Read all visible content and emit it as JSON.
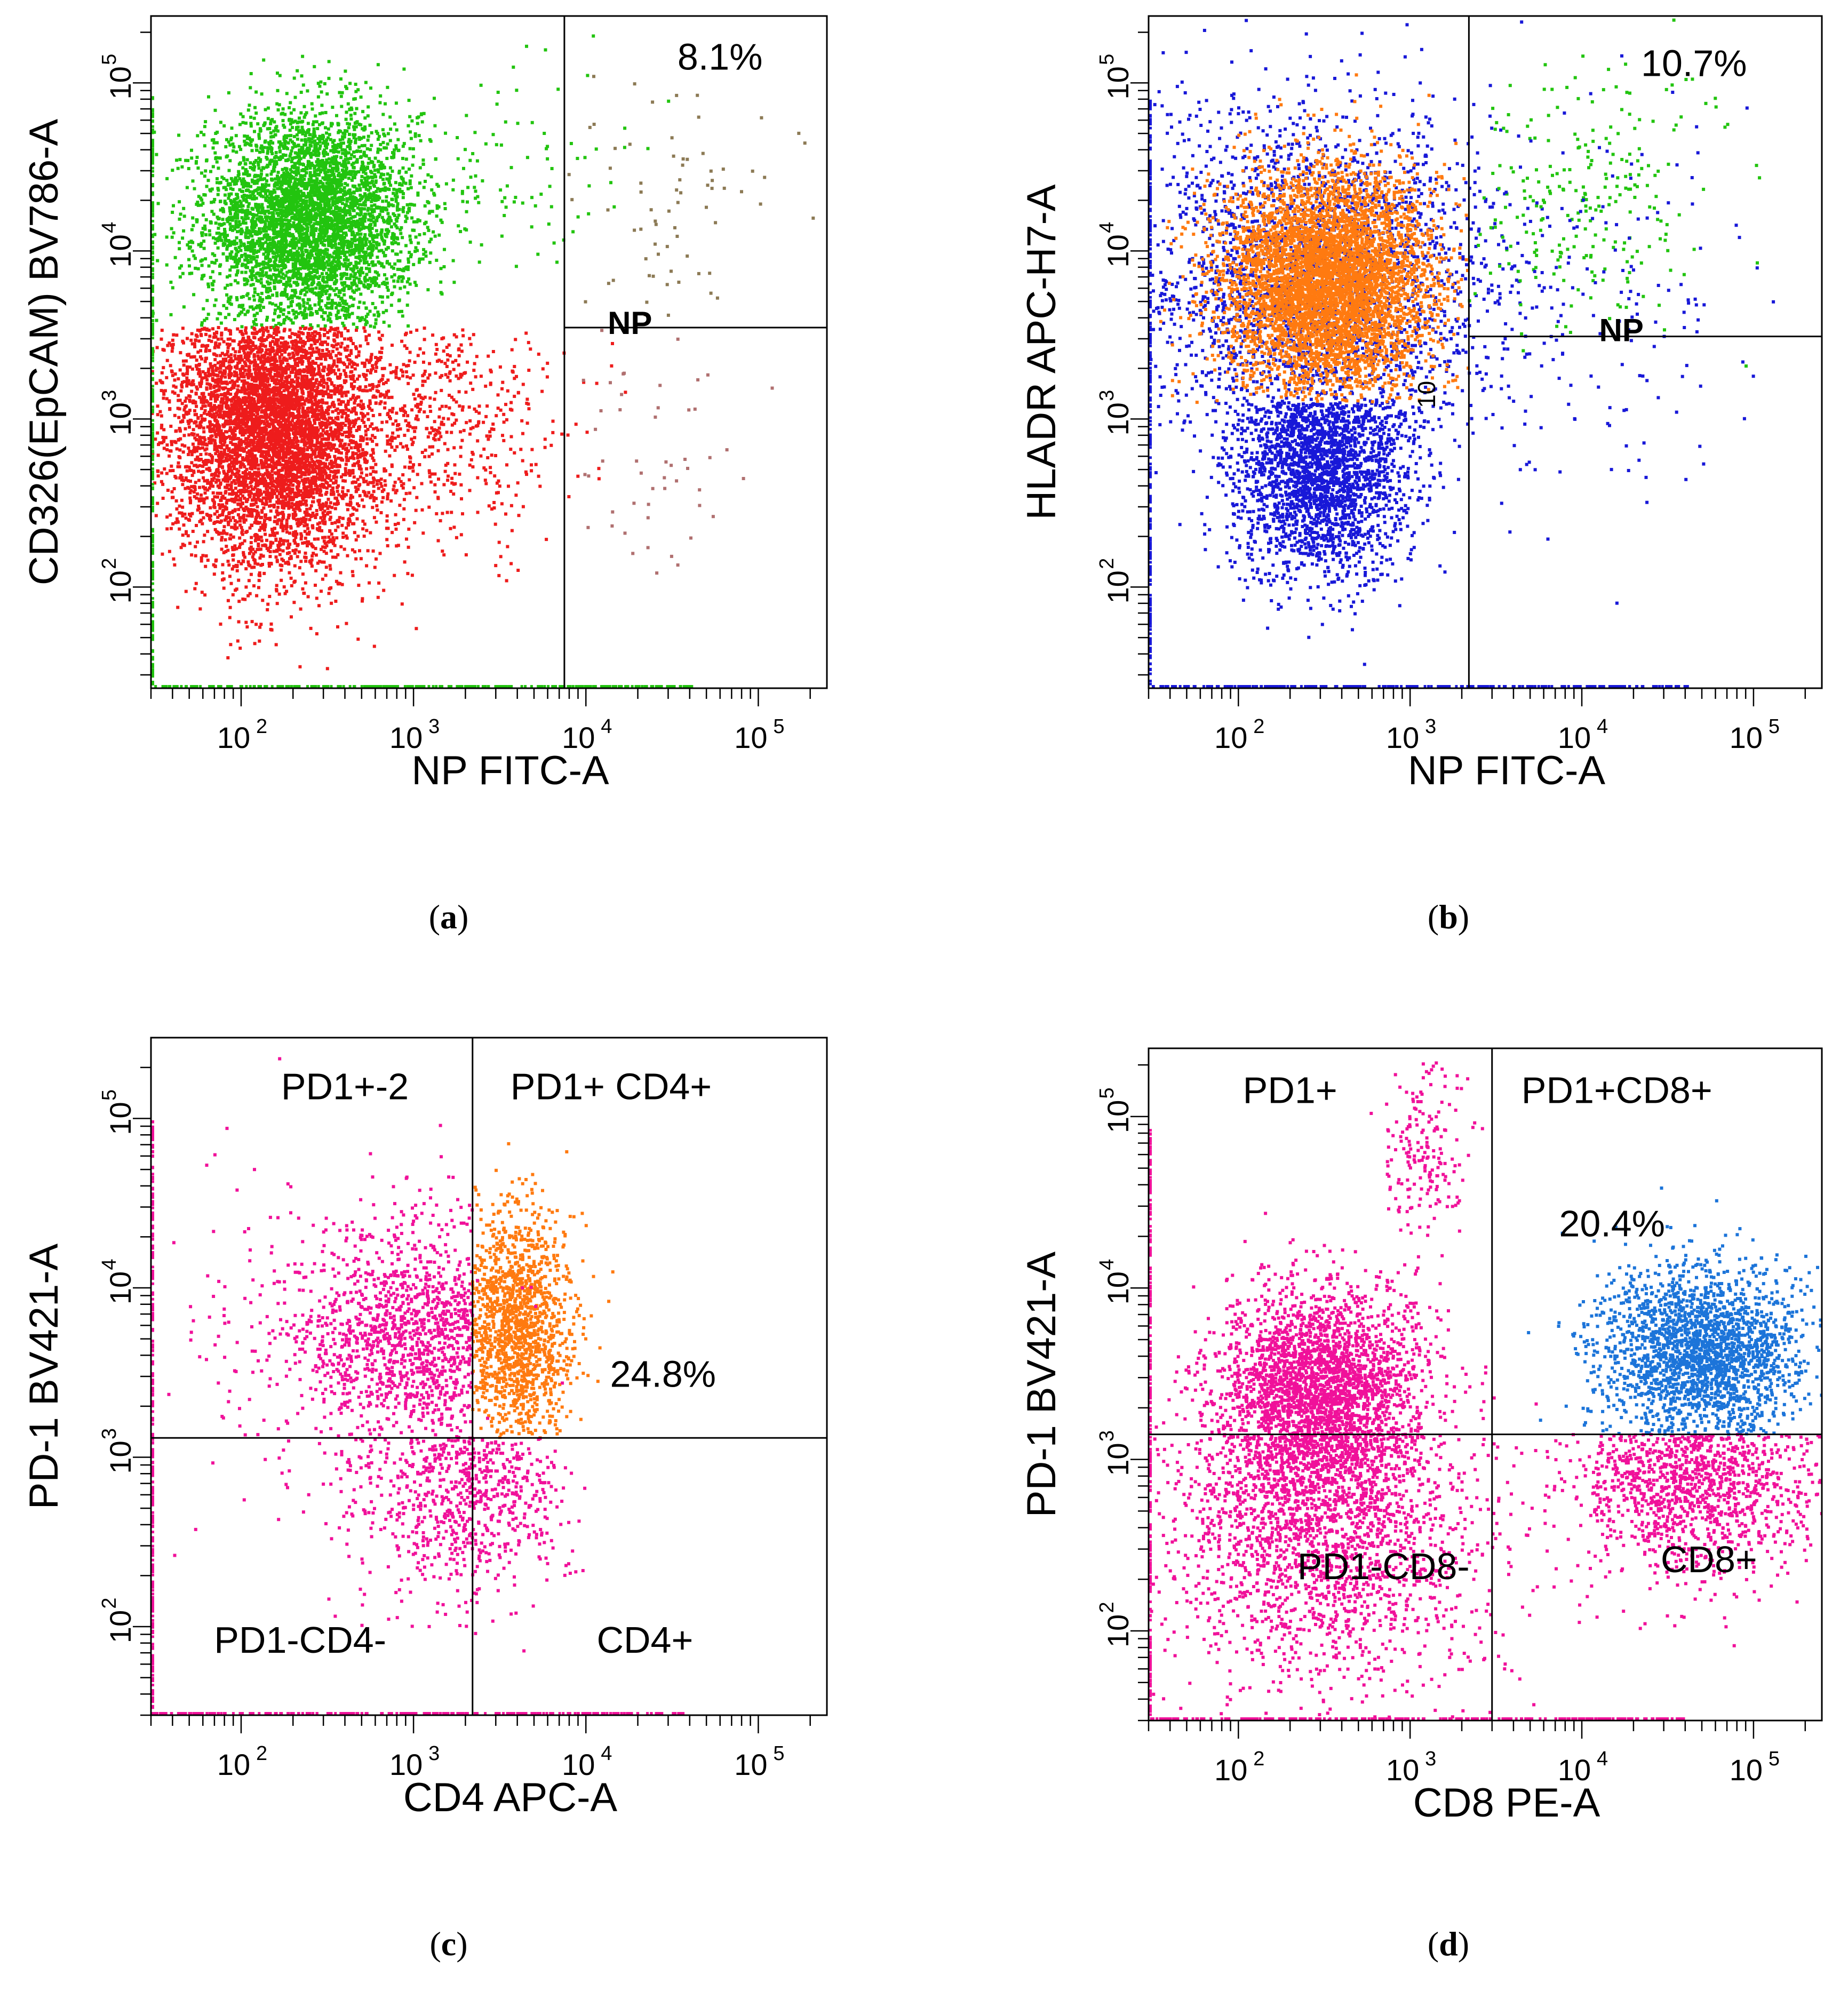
{
  "colors": {
    "green": "#22c40f",
    "red": "#ee1c1c",
    "blue": "#1818d8",
    "orange": "#ff7a10",
    "magenta": "#f0119a",
    "skyblue": "#1c74d9",
    "axis": "#000000"
  },
  "chart_data": [
    {
      "type": "scatter",
      "caption": "(a)",
      "xlabel": "NP FITC-A",
      "ylabel": "CD326(EpCAM) BV786-A",
      "x_scale": "log",
      "y_scale": "log",
      "xlim": [
        30,
        250000
      ],
      "ylim": [
        25,
        250000
      ],
      "x_ticks": [
        {
          "v": 100,
          "label": "10",
          "sup": "2"
        },
        {
          "v": 1000,
          "label": "10",
          "sup": "3"
        },
        {
          "v": 10000,
          "label": "10",
          "sup": "4"
        },
        {
          "v": 100000,
          "label": "10",
          "sup": "5"
        }
      ],
      "y_ticks": [
        {
          "v": 100,
          "label": "10",
          "sup": "2"
        },
        {
          "v": 1000,
          "label": "10",
          "sup": "3"
        },
        {
          "v": 10000,
          "label": "10",
          "sup": "4"
        },
        {
          "v": 100000,
          "label": "10",
          "sup": "5"
        }
      ],
      "gates": {
        "x": 7500,
        "y": 3500,
        "horizontal_from_x": 7500
      },
      "populations": [
        {
          "color": "green",
          "cx": 250,
          "cy": 15000,
          "sx": 0.3,
          "sy": 0.32,
          "n": 4500,
          "ymin": 3500,
          "ymax": 150000
        },
        {
          "color": "red",
          "cx": 160,
          "cy": 900,
          "sx": 0.3,
          "sy": 0.42,
          "n": 5500,
          "ymin": 30,
          "ymax": 3500
        },
        {
          "color": "red",
          "cx": 1500,
          "cy": 1000,
          "sx": 0.35,
          "sy": 0.4,
          "n": 500,
          "ymin": 100,
          "ymax": 3500
        },
        {
          "color": "green",
          "cx": 2500,
          "cy": 30000,
          "sx": 0.4,
          "sy": 0.3,
          "n": 120
        },
        {
          "color": "#8c7a55",
          "cx": 30000,
          "cy": 20000,
          "sx": 0.35,
          "sy": 0.35,
          "n": 70,
          "xmin": 7500,
          "ymin": 3500
        },
        {
          "color": "#b07070",
          "cx": 25000,
          "cy": 600,
          "sx": 0.3,
          "sy": 0.4,
          "n": 50,
          "xmin": 7500,
          "ymax": 3500
        }
      ],
      "annotations": [
        {
          "text": "8.1%",
          "x": 60000,
          "y": 120000
        },
        {
          "text": "NP",
          "x": 18000,
          "y": 3200,
          "bold": true
        }
      ]
    },
    {
      "type": "scatter",
      "caption": "(b)",
      "xlabel": "NP FITC-A",
      "ylabel": "HLADR APC-H7-A",
      "x_scale": "log",
      "y_scale": "log",
      "xlim": [
        30,
        250000
      ],
      "ylim": [
        25,
        250000
      ],
      "x_ticks": [
        {
          "v": 100,
          "label": "10",
          "sup": "2"
        },
        {
          "v": 1000,
          "label": "10",
          "sup": "3"
        },
        {
          "v": 10000,
          "label": "10",
          "sup": "4"
        },
        {
          "v": 100000,
          "label": "10",
          "sup": "5"
        }
      ],
      "y_ticks": [
        {
          "v": 100,
          "label": "10",
          "sup": "2"
        },
        {
          "v": 1000,
          "label": "10",
          "sup": "3"
        },
        {
          "v": 10000,
          "label": "10",
          "sup": "4"
        },
        {
          "v": 100000,
          "label": "10",
          "sup": "5"
        }
      ],
      "gates": {
        "x": 2200,
        "y": 3100,
        "horizontal_from_x": 2200
      },
      "populations": [
        {
          "color": "blue",
          "cx": 280,
          "cy": 6000,
          "sx": 0.55,
          "sy": 0.55,
          "n": 2500
        },
        {
          "color": "blue",
          "cx": 300,
          "cy": 500,
          "sx": 0.25,
          "sy": 0.32,
          "n": 2200,
          "ymax": 1250
        },
        {
          "color": "orange",
          "cx": 330,
          "cy": 6500,
          "sx": 0.3,
          "sy": 0.33,
          "n": 5200,
          "ymin": 1250,
          "xmax": 2200
        },
        {
          "color": "green",
          "cx": 10000,
          "cy": 20000,
          "sx": 0.35,
          "sy": 0.4,
          "n": 250,
          "xmin": 2200
        },
        {
          "color": "blue",
          "cx": 15000,
          "cy": 5000,
          "sx": 0.45,
          "sy": 0.6,
          "n": 150,
          "xmin": 2200
        }
      ],
      "annotations": [
        {
          "text": "10.7%",
          "x": 45000,
          "y": 110000
        },
        {
          "text": "NP",
          "x": 17000,
          "y": 2900,
          "bold": true
        },
        {
          "text": "10",
          "x": 1400,
          "y": 1400,
          "rotate": -90,
          "small": true
        }
      ]
    },
    {
      "type": "scatter",
      "caption": "(c)",
      "xlabel": "CD4 APC-A",
      "ylabel": "PD-1 BV421-A",
      "x_scale": "log",
      "y_scale": "log",
      "xlim": [
        30,
        250000
      ],
      "ylim": [
        30,
        300000
      ],
      "x_ticks": [
        {
          "v": 100,
          "label": "10",
          "sup": "2"
        },
        {
          "v": 1000,
          "label": "10",
          "sup": "3"
        },
        {
          "v": 10000,
          "label": "10",
          "sup": "4"
        },
        {
          "v": 100000,
          "label": "10",
          "sup": "5"
        }
      ],
      "y_ticks": [
        {
          "v": 100,
          "label": "10",
          "sup": "2"
        },
        {
          "v": 1000,
          "label": "10",
          "sup": "3"
        },
        {
          "v": 10000,
          "label": "10",
          "sup": "4"
        },
        {
          "v": 100000,
          "label": "10",
          "sup": "5"
        }
      ],
      "gates": {
        "x": 2200,
        "y": 1300,
        "horizontal_from_x": 30
      },
      "populations": [
        {
          "color": "magenta",
          "cx": 1200,
          "cy": 5000,
          "sx": 0.4,
          "sy": 0.35,
          "n": 1300,
          "xmax": 2200
        },
        {
          "color": "orange",
          "cx": 4000,
          "cy": 5500,
          "sx": 0.17,
          "sy": 0.35,
          "n": 1400,
          "xmin": 2200,
          "ymin": 1300,
          "xmax": 16000
        },
        {
          "color": "magenta",
          "cx": 2000,
          "cy": 600,
          "sx": 0.3,
          "sy": 0.3,
          "n": 700,
          "ymax": 1300
        },
        {
          "color": "magenta",
          "cx": 300,
          "cy": 4000,
          "sx": 0.5,
          "sy": 0.55,
          "n": 150
        }
      ],
      "annotations": [
        {
          "text": "PD1+-2",
          "x": 400,
          "y": 130000
        },
        {
          "text": "PD1+ CD4+",
          "x": 14000,
          "y": 130000
        },
        {
          "text": "24.8%",
          "x": 28000,
          "y": 2600
        },
        {
          "text": "PD1-CD4-",
          "x": 220,
          "y": 70
        },
        {
          "text": "CD4+",
          "x": 22000,
          "y": 70
        }
      ]
    },
    {
      "type": "scatter",
      "caption": "(d)",
      "xlabel": "CD8 PE-A",
      "ylabel": "PD-1 BV421-A",
      "x_scale": "log",
      "y_scale": "log",
      "xlim": [
        30,
        250000
      ],
      "ylim": [
        30,
        250000
      ],
      "x_ticks": [
        {
          "v": 100,
          "label": "10",
          "sup": "2"
        },
        {
          "v": 1000,
          "label": "10",
          "sup": "3"
        },
        {
          "v": 10000,
          "label": "10",
          "sup": "4"
        },
        {
          "v": 100000,
          "label": "10",
          "sup": "5"
        }
      ],
      "y_ticks": [
        {
          "v": 100,
          "label": "10",
          "sup": "2"
        },
        {
          "v": 1000,
          "label": "10",
          "sup": "3"
        },
        {
          "v": 10000,
          "label": "10",
          "sup": "4"
        },
        {
          "v": 100000,
          "label": "10",
          "sup": "5"
        }
      ],
      "gates": {
        "x": 3000,
        "y": 1400,
        "horizontal_from_x": 30
      },
      "populations": [
        {
          "color": "magenta",
          "cx": 300,
          "cy": 2500,
          "sx": 0.3,
          "sy": 0.3,
          "n": 3000,
          "xmax": 3000
        },
        {
          "color": "magenta",
          "cx": 280,
          "cy": 500,
          "sx": 0.4,
          "sy": 0.45,
          "n": 1500,
          "xmax": 3000,
          "ymax": 1400
        },
        {
          "color": "magenta",
          "cx": 1200,
          "cy": 60000,
          "sx": 0.12,
          "sy": 0.25,
          "n": 180,
          "ymin": 20000
        },
        {
          "color": "skyblue",
          "cx": 50000,
          "cy": 4000,
          "sx": 0.3,
          "sy": 0.25,
          "n": 2200,
          "xmin": 3000,
          "ymin": 1400
        },
        {
          "color": "magenta",
          "cx": 45000,
          "cy": 800,
          "sx": 0.35,
          "sy": 0.3,
          "n": 1200,
          "xmin": 3000,
          "ymax": 1400
        },
        {
          "color": "magenta",
          "cx": 600,
          "cy": 250,
          "sx": 0.6,
          "sy": 0.5,
          "n": 500
        }
      ],
      "annotations": [
        {
          "text": "PD1+",
          "x": 200,
          "y": 120000
        },
        {
          "text": "PD1+CD8+",
          "x": 16000,
          "y": 120000
        },
        {
          "text": "20.4%",
          "x": 15000,
          "y": 20000
        },
        {
          "text": "PD1-CD8-",
          "x": 700,
          "y": 200
        },
        {
          "text": "CD8+",
          "x": 55000,
          "y": 220
        }
      ]
    }
  ]
}
